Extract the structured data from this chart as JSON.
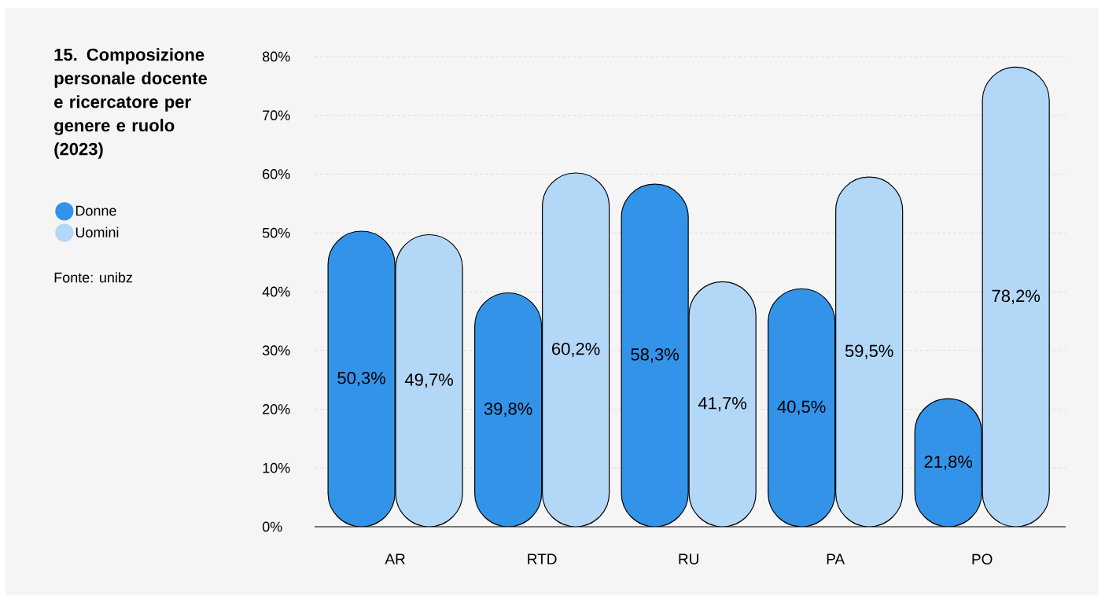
{
  "chart_data": {
    "type": "bar",
    "title": "15. Composizione personale docente e ricercatore per genere e ruolo (2023)",
    "categories": [
      "AR",
      "RTD",
      "RU",
      "PA",
      "PO"
    ],
    "series": [
      {
        "name": "Donne",
        "color": "#3393e8",
        "values": [
          50.3,
          39.8,
          58.3,
          40.5,
          21.8
        ],
        "value_labels": [
          "50,3%",
          "39,8%",
          "58,3%",
          "40,5%",
          "21,8%"
        ]
      },
      {
        "name": "Uomini",
        "color": "#b3d7f7",
        "values": [
          49.7,
          60.2,
          41.7,
          59.5,
          78.2
        ],
        "value_labels": [
          "49,7%",
          "60,2%",
          "41,7%",
          "59,5%",
          "78,2%"
        ]
      }
    ],
    "ylim": [
      0,
      80
    ],
    "yticks": [
      {
        "value": 0,
        "label": "0%"
      },
      {
        "value": 10,
        "label": "10%"
      },
      {
        "value": 20,
        "label": "20%"
      },
      {
        "value": 30,
        "label": "30%"
      },
      {
        "value": 40,
        "label": "40%"
      },
      {
        "value": 50,
        "label": "50%"
      },
      {
        "value": 60,
        "label": "60%"
      },
      {
        "value": 70,
        "label": "70%"
      },
      {
        "value": 80,
        "label": "80%"
      }
    ],
    "grid": "y",
    "legend": "left",
    "annotations": [
      "Fonte: unibz"
    ]
  }
}
